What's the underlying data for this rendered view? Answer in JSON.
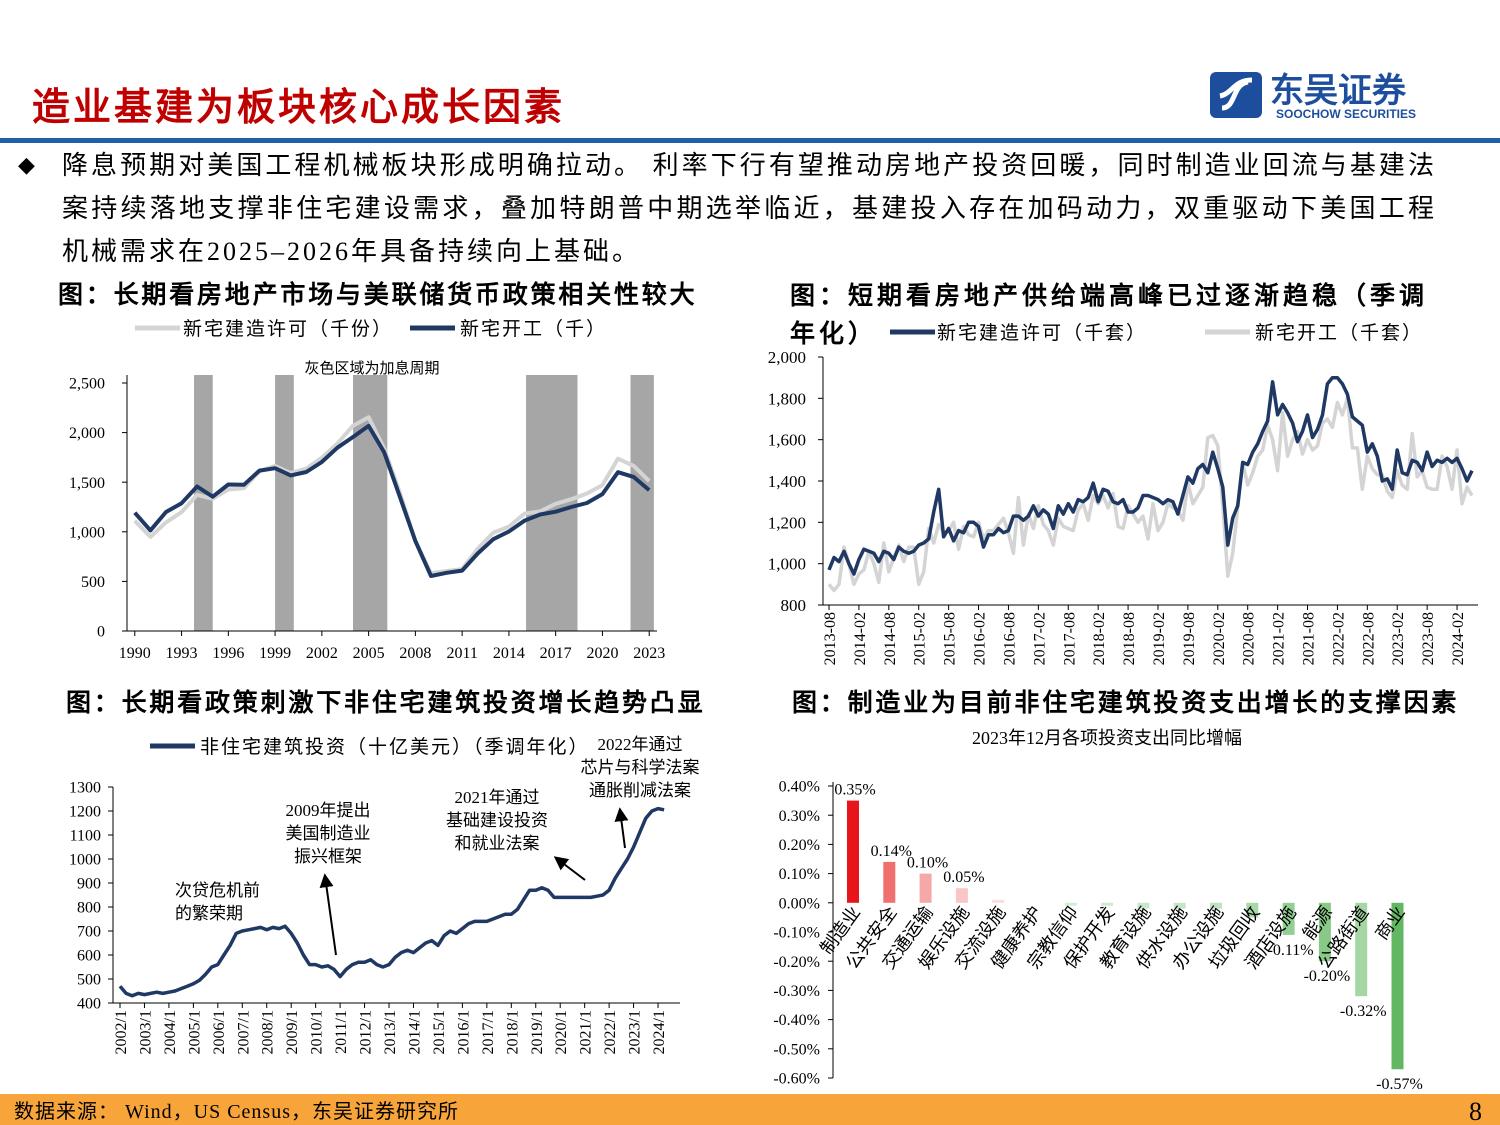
{
  "header": {
    "title": "造业基建为板块核心成长因素",
    "logo_name": "东吴证券",
    "logo_en": "SOOCHOW SECURITIES"
  },
  "bullet": "降息预期对美国工程机械板块形成明确拉动。 利率下行有望推动房地产投资回暖，同时制造业回流与基建法案持续落地支撑非住宅建设需求，叠加特朗普中期选举临近，基建投入存在加码动力，双重驱动下美国工程机械需求在2025–2026年具备持续向上基础。",
  "footer": {
    "source": "数据来源： Wind，US Census，东吴证券研究所",
    "page": 8
  },
  "chart_data": [
    {
      "type": "line",
      "title": "图：长期看房地产市场与美联储货币政策相关性较大",
      "annotation": "灰色区域为加息周期",
      "x": [
        1990,
        1991,
        1992,
        1993,
        1994,
        1995,
        1996,
        1997,
        1998,
        1999,
        2000,
        2001,
        2002,
        2003,
        2004,
        2005,
        2006,
        2007,
        2008,
        2009,
        2010,
        2011,
        2012,
        2013,
        2014,
        2015,
        2016,
        2017,
        2018,
        2019,
        2020,
        2021,
        2022,
        2023
      ],
      "xlim": [
        1989.5,
        2023.5
      ],
      "xticks": [
        1990,
        1993,
        1996,
        1999,
        2002,
        2005,
        2008,
        2011,
        2014,
        2017,
        2020,
        2023
      ],
      "ylim": [
        0,
        2500
      ],
      "yticks": [
        0,
        500,
        {
          "value": 1000,
          "label": "1,000"
        },
        {
          "value": 1500,
          "label": "1,500"
        },
        {
          "value": 2000,
          "label": "2,000"
        },
        {
          "value": 2500,
          "label": "2,500"
        }
      ],
      "shaded": [
        [
          1993.8,
          1995
        ],
        [
          1999,
          2000.2
        ],
        [
          2004,
          2006.2
        ],
        [
          2015.1,
          2018.4
        ],
        [
          2021.8,
          2023.3
        ]
      ],
      "shade_color": "#a6a6a6",
      "series": [
        {
          "name": "新宅建造许可（千份）",
          "color": "#d4d4d4",
          "values": [
            1111,
            949,
            1095,
            1199,
            1372,
            1333,
            1426,
            1441,
            1612,
            1664,
            1592,
            1637,
            1748,
            1889,
            2070,
            2155,
            1839,
            1398,
            905,
            583,
            605,
            624,
            830,
            991,
            1052,
            1183,
            1207,
            1282,
            1329,
            1386,
            1471,
            1737,
            1665,
            1511
          ]
        },
        {
          "name": "新宅开工（千）",
          "color": "#1f3864",
          "values": [
            1193,
            1014,
            1200,
            1288,
            1457,
            1354,
            1477,
            1474,
            1617,
            1641,
            1569,
            1603,
            1705,
            1848,
            1956,
            2068,
            1801,
            1355,
            906,
            554,
            587,
            609,
            781,
            925,
            1003,
            1112,
            1174,
            1203,
            1250,
            1290,
            1380,
            1601,
            1553,
            1420
          ]
        }
      ]
    },
    {
      "type": "line",
      "title": "图：短期看房地产供给端高峰已过逐渐趋稳（季调年化）",
      "categories": [
        "2013-08",
        null,
        null,
        null,
        null,
        null,
        "2014-02",
        null,
        null,
        null,
        null,
        null,
        "2014-08",
        null,
        null,
        null,
        null,
        null,
        "2015-02",
        null,
        null,
        null,
        null,
        null,
        "2015-08",
        null,
        null,
        null,
        null,
        null,
        "2016-02",
        null,
        null,
        null,
        null,
        null,
        "2016-08",
        null,
        null,
        null,
        null,
        null,
        "2017-02",
        null,
        null,
        null,
        null,
        null,
        "2017-08",
        null,
        null,
        null,
        null,
        null,
        "2018-02",
        null,
        null,
        null,
        null,
        null,
        "2018-08",
        null,
        null,
        null,
        null,
        null,
        "2019-02",
        null,
        null,
        null,
        null,
        null,
        "2019-08",
        null,
        null,
        null,
        null,
        null,
        "2020-02",
        null,
        null,
        null,
        null,
        null,
        "2020-08",
        null,
        null,
        null,
        null,
        null,
        "2021-02",
        null,
        null,
        null,
        null,
        null,
        "2021-08",
        null,
        null,
        null,
        null,
        null,
        "2022-02",
        null,
        null,
        null,
        null,
        null,
        "2022-08",
        null,
        null,
        null,
        null,
        null,
        "2023-02",
        null,
        null,
        null,
        null,
        null,
        "2023-08",
        null,
        null,
        null,
        null,
        null,
        "2024-02",
        null,
        null,
        null
      ],
      "ylim": [
        800,
        2000
      ],
      "yticks": [
        800,
        {
          "value": 1000,
          "label": "1,000"
        },
        {
          "value": 1200,
          "label": "1,200"
        },
        {
          "value": 1400,
          "label": "1,400"
        },
        {
          "value": 1600,
          "label": "1,600"
        },
        {
          "value": 1800,
          "label": "1,800"
        },
        {
          "value": 2000,
          "label": "2,000"
        }
      ],
      "series": [
        {
          "name": "新宅建造许可（千套）",
          "color": "#1f3864",
          "values": [
            970,
            1030,
            1010,
            1060,
            1000,
            950,
            1020,
            1070,
            1060,
            1050,
            1010,
            1060,
            1050,
            1020,
            1080,
            1060,
            1050,
            1060,
            1090,
            1100,
            1120,
            1250,
            1360,
            1130,
            1170,
            1110,
            1160,
            1150,
            1200,
            1200,
            1180,
            1080,
            1140,
            1140,
            1170,
            1150,
            1160,
            1230,
            1230,
            1210,
            1230,
            1280,
            1230,
            1260,
            1240,
            1170,
            1280,
            1240,
            1290,
            1250,
            1310,
            1300,
            1320,
            1390,
            1300,
            1360,
            1350,
            1300,
            1290,
            1310,
            1250,
            1250,
            1270,
            1330,
            1330,
            1320,
            1310,
            1290,
            1310,
            1300,
            1240,
            1330,
            1420,
            1390,
            1460,
            1480,
            1440,
            1540,
            1460,
            1370,
            1090,
            1220,
            1280,
            1490,
            1480,
            1540,
            1580,
            1640,
            1690,
            1880,
            1720,
            1770,
            1730,
            1680,
            1590,
            1640,
            1720,
            1610,
            1650,
            1720,
            1870,
            1900,
            1900,
            1870,
            1820,
            1710,
            1690,
            1670,
            1540,
            1580,
            1520,
            1400,
            1410,
            1360,
            1550,
            1440,
            1430,
            1500,
            1490,
            1450,
            1540,
            1470,
            1500,
            1490,
            1510,
            1490,
            1510,
            1460,
            1400,
            1450
          ]
        },
        {
          "name": "新宅开工（千套）",
          "color": "#d4d4d4",
          "values": [
            900,
            870,
            900,
            1080,
            1000,
            900,
            950,
            970,
            1060,
            1000,
            910,
            1100,
            960,
            1030,
            1090,
            1010,
            1080,
            1080,
            900,
            960,
            1170,
            1100,
            1190,
            1150,
            1160,
            1200,
            1070,
            1180,
            1140,
            1130,
            1200,
            1120,
            1160,
            1160,
            1190,
            1220,
            1150,
            1050,
            1320,
            1090,
            1240,
            1170,
            1280,
            1190,
            1160,
            1090,
            1220,
            1180,
            1170,
            1160,
            1260,
            1290,
            1210,
            1330,
            1290,
            1330,
            1270,
            1340,
            1180,
            1170,
            1280,
            1240,
            1200,
            1230,
            1120,
            1290,
            1160,
            1200,
            1290,
            1270,
            1260,
            1210,
            1390,
            1290,
            1330,
            1370,
            1610,
            1620,
            1570,
            1280,
            940,
            1050,
            1270,
            1490,
            1380,
            1440,
            1520,
            1550,
            1670,
            1600,
            1450,
            1730,
            1520,
            1600,
            1640,
            1530,
            1600,
            1550,
            1570,
            1680,
            1700,
            1660,
            1780,
            1720,
            1800,
            1560,
            1560,
            1360,
            1520,
            1460,
            1430,
            1430,
            1350,
            1320,
            1450,
            1380,
            1360,
            1630,
            1420,
            1450,
            1370,
            1360,
            1360,
            1520,
            1470,
            1360,
            1550,
            1290,
            1370,
            1330
          ]
        }
      ]
    },
    {
      "type": "line",
      "title": "图：长期看政策刺激下非住宅建筑投资增长趋势凸显",
      "categories": [
        "2002/1",
        null,
        null,
        null,
        "2003/1",
        null,
        null,
        null,
        "2004/1",
        null,
        null,
        null,
        "2005/1",
        null,
        null,
        null,
        "2006/1",
        null,
        null,
        null,
        "2007/1",
        null,
        null,
        null,
        "2008/1",
        null,
        null,
        null,
        "2009/1",
        null,
        null,
        null,
        "2010/1",
        null,
        null,
        null,
        "2011/1",
        null,
        null,
        null,
        "2012/1",
        null,
        null,
        null,
        "2013/1",
        null,
        null,
        null,
        "2014/1",
        null,
        null,
        null,
        "2015/1",
        null,
        null,
        null,
        "2016/1",
        null,
        null,
        null,
        "2017/1",
        null,
        null,
        null,
        "2018/1",
        null,
        null,
        null,
        "2019/1",
        null,
        null,
        null,
        "2020/1",
        null,
        null,
        null,
        "2021/1",
        null,
        null,
        null,
        "2022/1",
        null,
        null,
        null,
        "2023/1",
        null,
        null,
        null,
        "2024/1",
        null
      ],
      "ylim": [
        400,
        1300
      ],
      "yticks": [
        400,
        500,
        600,
        700,
        800,
        900,
        1000,
        1100,
        1200,
        1300
      ],
      "series": [
        {
          "name": "非住宅建筑投资（十亿美元）（季调年化）",
          "color": "#1f3864",
          "values": [
            470,
            440,
            430,
            440,
            435,
            440,
            445,
            440,
            445,
            450,
            460,
            470,
            480,
            495,
            520,
            550,
            560,
            600,
            640,
            690,
            700,
            705,
            710,
            715,
            705,
            715,
            710,
            720,
            690,
            650,
            600,
            560,
            560,
            550,
            555,
            540,
            510,
            540,
            560,
            570,
            570,
            580,
            560,
            550,
            560,
            590,
            610,
            620,
            610,
            630,
            650,
            660,
            640,
            680,
            700,
            690,
            710,
            730,
            740,
            740,
            740,
            750,
            760,
            770,
            770,
            790,
            830,
            870,
            870,
            880,
            870,
            840,
            840,
            840,
            840,
            840,
            840,
            840,
            845,
            850,
            870,
            920,
            960,
            1000,
            1050,
            1110,
            1170,
            1200,
            1210,
            1205
          ]
        }
      ],
      "annotations": [
        {
          "lines": [
            "次贷危机前",
            "的繁荣期"
          ]
        },
        {
          "lines": [
            "2009年提出",
            "美国制造业",
            "振兴框架"
          ]
        },
        {
          "lines": [
            "2021年通过",
            "基础建设投资",
            "和就业法案"
          ]
        },
        {
          "lines": [
            "2022年通过",
            "芯片与科学法案",
            "通胀削减法案"
          ]
        }
      ]
    },
    {
      "type": "bar",
      "title": "图：制造业为目前非住宅建筑投资支出增长的支撑因素",
      "subtitle": "2023年12月各项投资支出同比增幅",
      "categories": [
        "制造业",
        "公共安全",
        "交通运输",
        "娱乐设施",
        "交流设施",
        "健康养护",
        "宗教信仰",
        "保护开发",
        "教育设施",
        "供水设施",
        "办公设施",
        "垃圾回收",
        "酒店设施",
        "能源",
        "公路街道",
        "商业"
      ],
      "values": [
        0.35,
        0.14,
        0.1,
        0.05,
        0.01,
        0,
        -0.01,
        -0.01,
        -0.02,
        -0.02,
        -0.02,
        -0.05,
        -0.11,
        -0.2,
        -0.32,
        -0.57
      ],
      "value_labels": [
        "0.35%",
        "0.14%",
        "0.10%",
        "0.05%",
        null,
        null,
        null,
        null,
        null,
        null,
        null,
        null,
        "-0.11%",
        "-0.20%",
        "-0.32%",
        "-0.57%"
      ],
      "colors": [
        "#e8141c",
        "#f07070",
        "#f5a8a8",
        "#f8c6c6",
        "#fadcdc",
        "#fce9e9",
        "#d4ebd4",
        "#d0e9d0",
        "#cbe7cb",
        "#c6e4c6",
        "#c1e2c1",
        "#a8d8a8",
        "#93ce93",
        "#88c988",
        "#a5d7a5",
        "#62b862"
      ],
      "ylim": [
        -0.6,
        0.4
      ],
      "yticks": [
        {
          "value": -0.6,
          "label": "-0.60%"
        },
        {
          "value": -0.5,
          "label": "-0.50%"
        },
        {
          "value": -0.4,
          "label": "-0.40%"
        },
        {
          "value": -0.3,
          "label": "-0.30%"
        },
        {
          "value": -0.2,
          "label": "-0.20%"
        },
        {
          "value": -0.1,
          "label": "-0.10%"
        },
        {
          "value": 0,
          "label": "0.00%"
        },
        {
          "value": 0.1,
          "label": "0.10%"
        },
        {
          "value": 0.2,
          "label": "0.20%"
        },
        {
          "value": 0.3,
          "label": "0.30%"
        },
        {
          "value": 0.4,
          "label": "0.40%"
        }
      ]
    }
  ]
}
